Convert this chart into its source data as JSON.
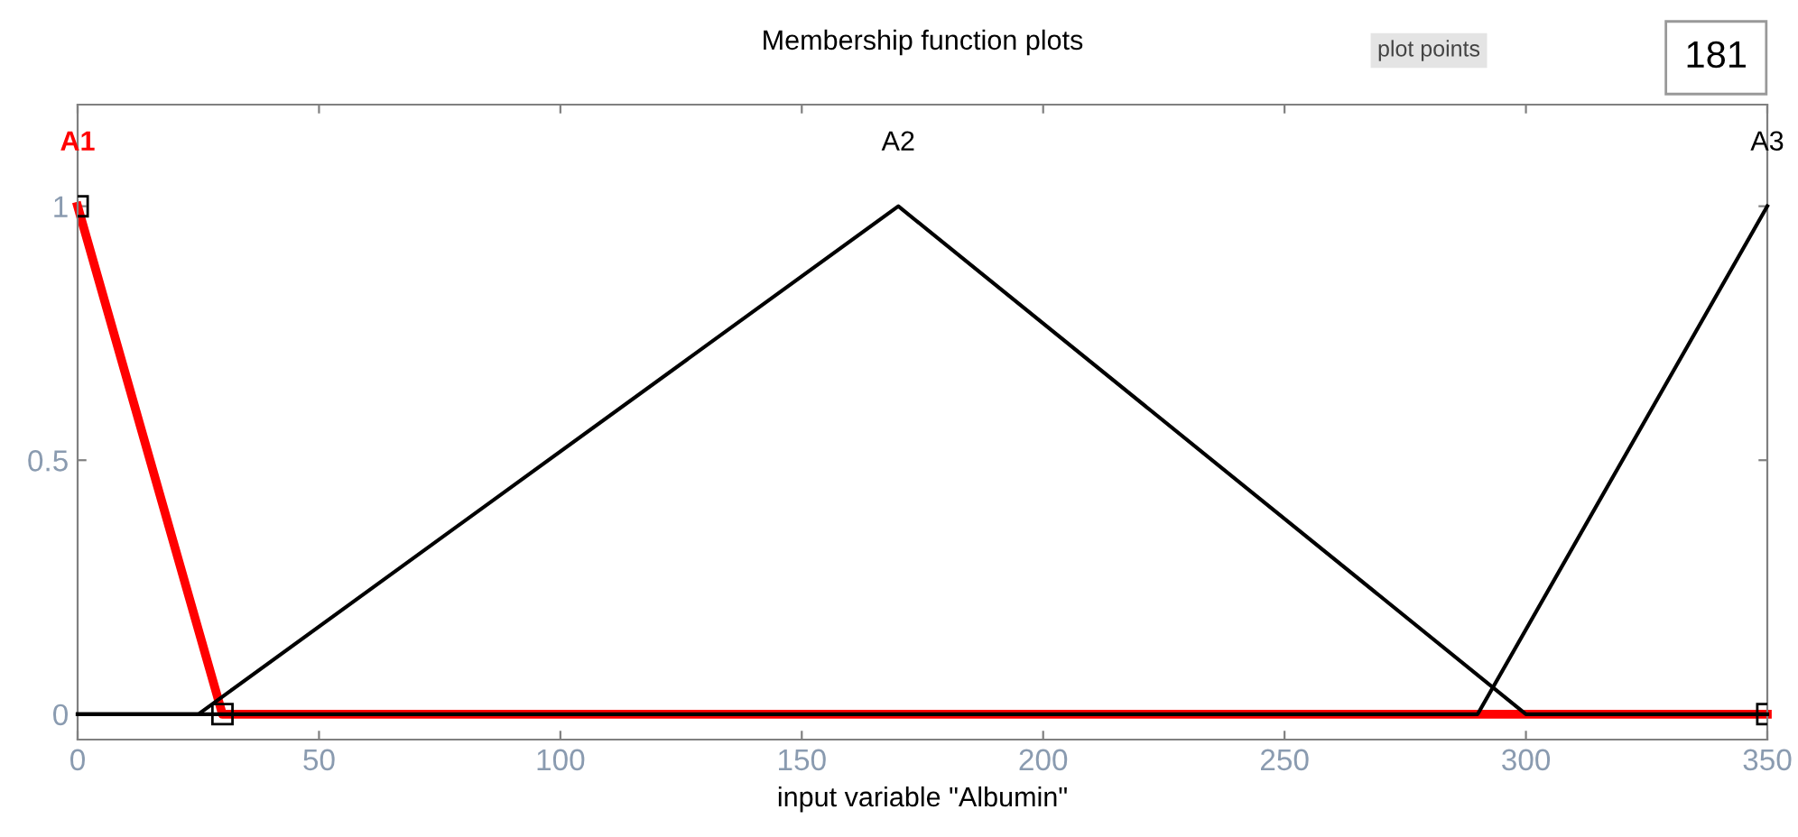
{
  "chart_data": {
    "type": "line",
    "title": "Membership function plots",
    "xlabel": "input variable \"Albumin\"",
    "series": [
      {
        "name": "A1",
        "color": "#ff0000",
        "x": [
          0,
          30,
          350
        ],
        "values": [
          1,
          0,
          0
        ],
        "marker": "square"
      },
      {
        "name": "A2",
        "color": "#000000",
        "x": [
          0,
          25,
          170,
          300,
          350
        ],
        "values": [
          0,
          0,
          1,
          0,
          0
        ]
      },
      {
        "name": "A3",
        "color": "#000000",
        "x": [
          0,
          290,
          350
        ],
        "values": [
          0,
          0,
          1
        ]
      }
    ],
    "xlim": [
      0,
      350
    ],
    "xticks": [
      0,
      50,
      100,
      150,
      200,
      250,
      300,
      350
    ],
    "ylim": [
      -0.05,
      1.2
    ],
    "yticks": [
      0,
      0.5,
      1
    ],
    "grid": false,
    "legend": false,
    "line_style": "solid",
    "annotations": [
      "plot points",
      "181"
    ]
  }
}
